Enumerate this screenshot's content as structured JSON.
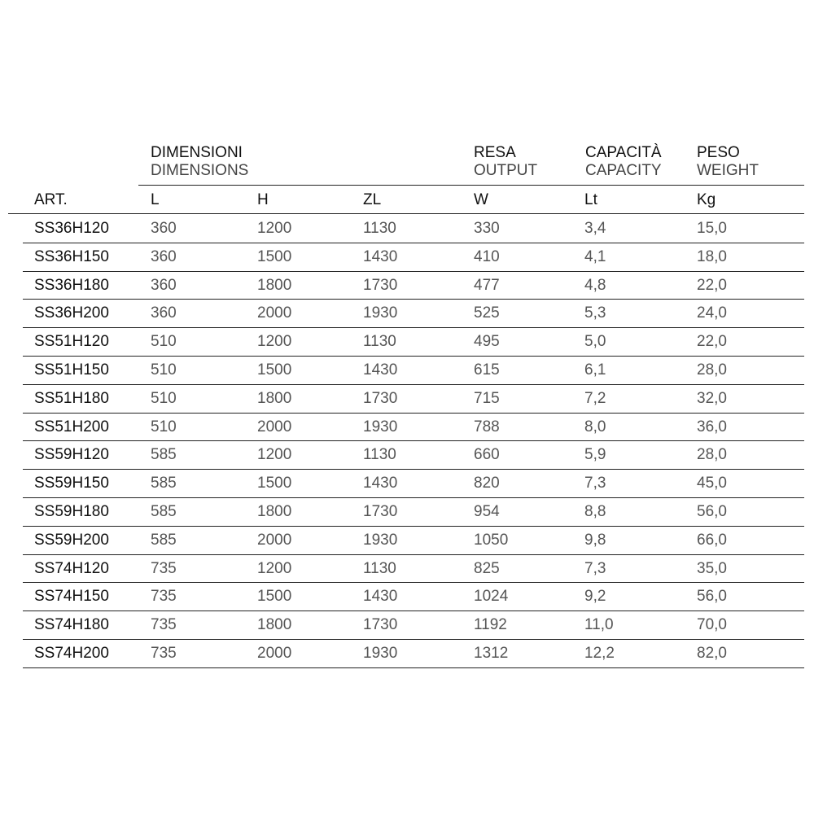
{
  "headers": {
    "dimensioni": "DIMENSIONI",
    "dimensions": "DIMENSIONS",
    "resa": "RESA",
    "output": "OUTPUT",
    "capacita": "CAPACITÀ",
    "capacity": "CAPACITY",
    "peso": "PESO",
    "weight": "WEIGHT"
  },
  "columns": [
    "ART.",
    "L",
    "H",
    "ZL",
    "W",
    "Lt",
    "Kg"
  ],
  "rows": [
    [
      "SS36H120",
      "360",
      "1200",
      "1130",
      "330",
      "3,4",
      "15,0"
    ],
    [
      "SS36H150",
      "360",
      "1500",
      "1430",
      "410",
      "4,1",
      "18,0"
    ],
    [
      "SS36H180",
      "360",
      "1800",
      "1730",
      "477",
      "4,8",
      "22,0"
    ],
    [
      "SS36H200",
      "360",
      "2000",
      "1930",
      "525",
      "5,3",
      "24,0"
    ],
    [
      "SS51H120",
      "510",
      "1200",
      "1130",
      "495",
      "5,0",
      "22,0"
    ],
    [
      "SS51H150",
      "510",
      "1500",
      "1430",
      "615",
      "6,1",
      "28,0"
    ],
    [
      "SS51H180",
      "510",
      "1800",
      "1730",
      "715",
      "7,2",
      "32,0"
    ],
    [
      "SS51H200",
      "510",
      "2000",
      "1930",
      "788",
      "8,0",
      "36,0"
    ],
    [
      "SS59H120",
      "585",
      "1200",
      "1130",
      "660",
      "5,9",
      "28,0"
    ],
    [
      "SS59H150",
      "585",
      "1500",
      "1430",
      "820",
      "7,3",
      "45,0"
    ],
    [
      "SS59H180",
      "585",
      "1800",
      "1730",
      "954",
      "8,8",
      "56,0"
    ],
    [
      "SS59H200",
      "585",
      "2000",
      "1930",
      "1050",
      "9,8",
      "66,0"
    ],
    [
      "SS74H120",
      "735",
      "1200",
      "1130",
      "825",
      "7,3",
      "35,0"
    ],
    [
      "SS74H150",
      "735",
      "1500",
      "1430",
      "1024",
      "9,2",
      "56,0"
    ],
    [
      "SS74H180",
      "735",
      "1800",
      "1730",
      "1192",
      "11,0",
      "70,0"
    ],
    [
      "SS74H200",
      "735",
      "2000",
      "1930",
      "1312",
      "12,2",
      "82,0"
    ]
  ]
}
